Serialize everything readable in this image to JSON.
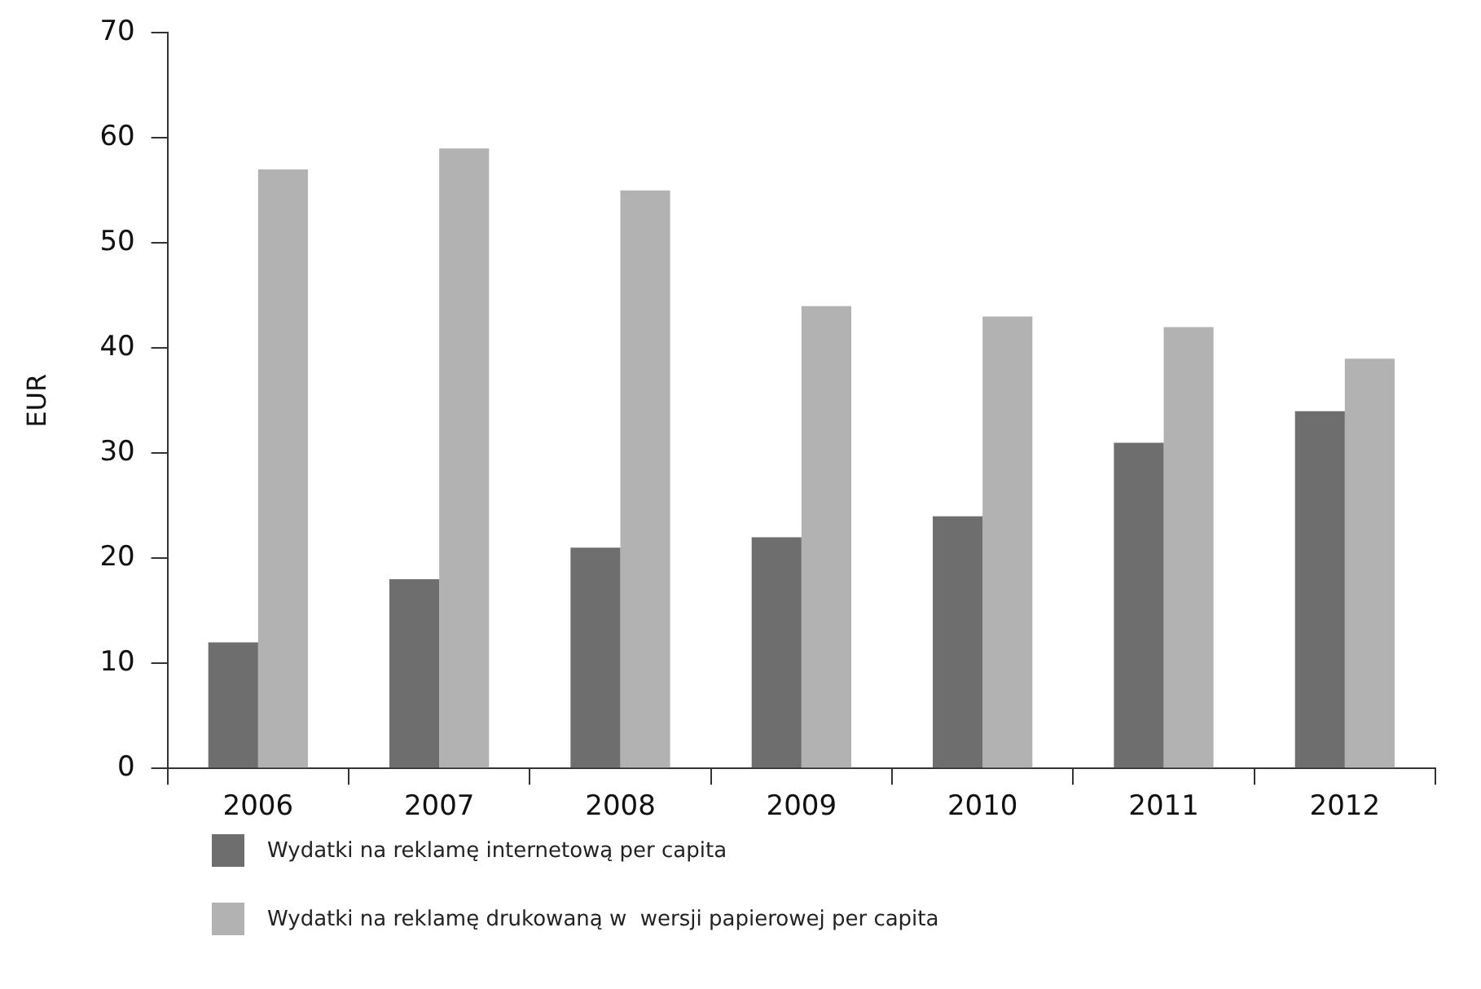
{
  "chart_data": {
    "type": "bar",
    "ylabel": "EUR",
    "categories": [
      "2006",
      "2007",
      "2008",
      "2009",
      "2010",
      "2011",
      "2012"
    ],
    "series": [
      {
        "name": "Wydatki na reklamę internetową per capita",
        "color": "#6e6e6e",
        "values": [
          12,
          18,
          21,
          22,
          24,
          31,
          34
        ]
      },
      {
        "name": "Wydatki na reklamę drukowaną w  wersji papierowej per capita",
        "color": "#b2b2b2",
        "values": [
          57,
          59,
          55,
          44,
          43,
          42,
          39
        ]
      }
    ],
    "ylim": [
      0,
      70
    ],
    "yticks": [
      0,
      10,
      20,
      30,
      40,
      50,
      60,
      70
    ],
    "grid": false,
    "legend": "bottom left"
  }
}
